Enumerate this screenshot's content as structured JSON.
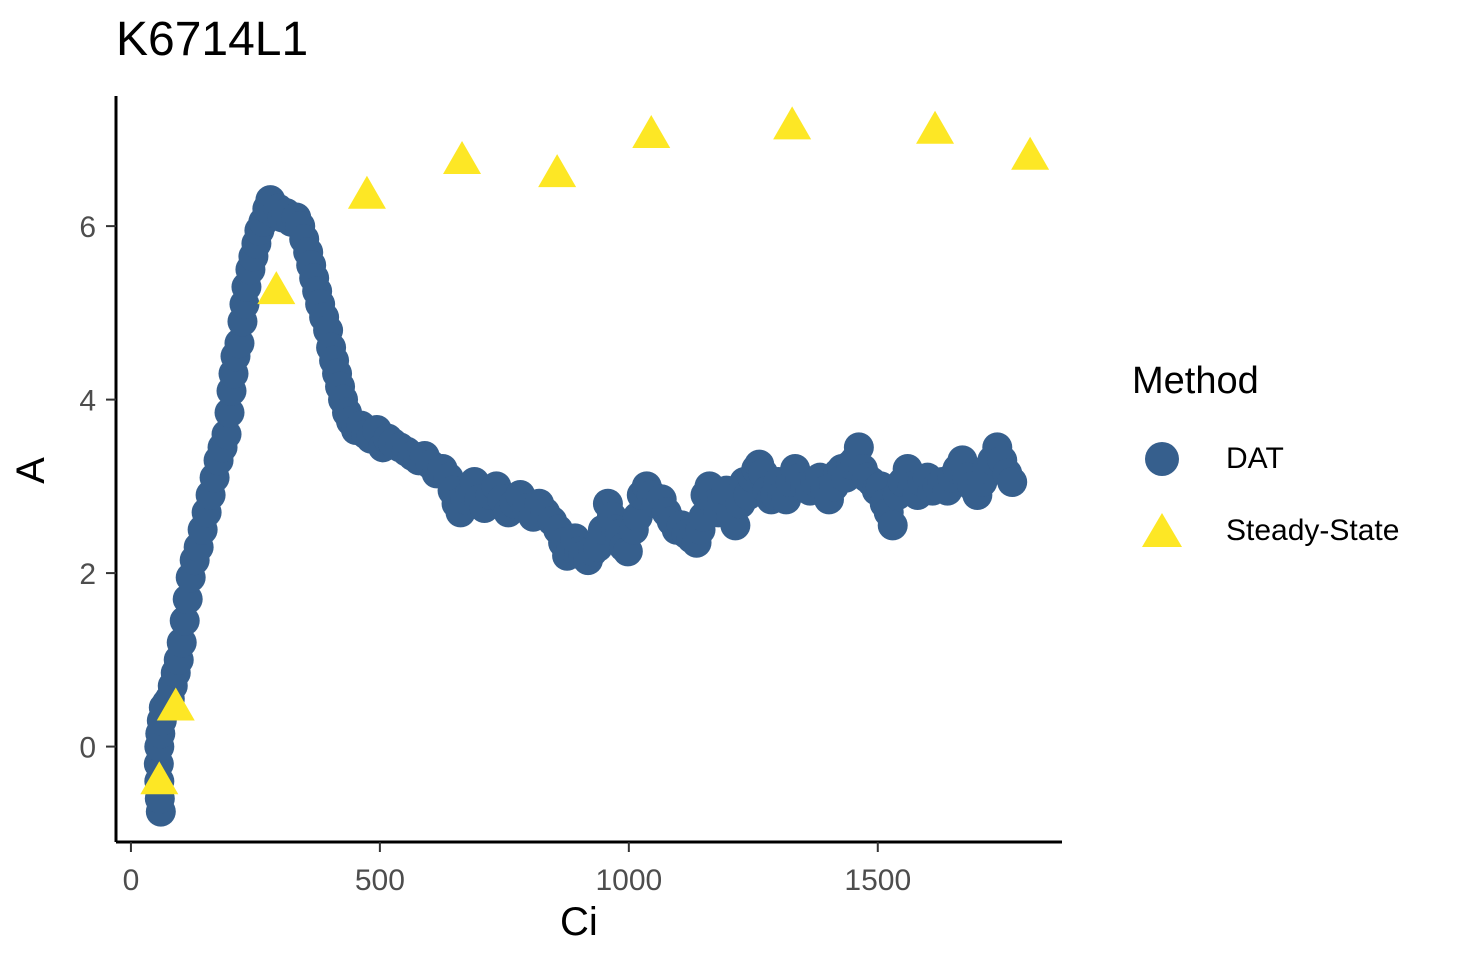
{
  "chart_data": {
    "type": "scatter",
    "title": "K6714L1",
    "xlabel": "Ci",
    "ylabel": "A",
    "xlim": [
      -30,
      1870
    ],
    "ylim": [
      -1.1,
      7.5
    ],
    "x_ticks": [
      0,
      500,
      1000,
      1500
    ],
    "x_tick_labels": [
      "0",
      "500",
      "1000",
      "1500"
    ],
    "y_ticks": [
      0,
      2,
      4,
      6
    ],
    "y_tick_labels": [
      "0",
      "2",
      "4",
      "6"
    ],
    "grid": false,
    "legend_title": "Method",
    "legend_position": "right",
    "series": [
      {
        "name": "DAT",
        "marker": "circle",
        "color": "#365f8d",
        "points": [
          [
            60,
            -0.75
          ],
          [
            58,
            -0.6
          ],
          [
            57,
            -0.4
          ],
          [
            56,
            -0.2
          ],
          [
            57,
            0.0
          ],
          [
            59,
            0.15
          ],
          [
            62,
            0.3
          ],
          [
            66,
            0.45
          ],
          [
            72,
            0.5
          ],
          [
            78,
            0.55
          ],
          [
            84,
            0.7
          ],
          [
            90,
            0.85
          ],
          [
            96,
            1.0
          ],
          [
            102,
            1.2
          ],
          [
            108,
            1.45
          ],
          [
            114,
            1.7
          ],
          [
            120,
            1.95
          ],
          [
            128,
            2.15
          ],
          [
            136,
            2.3
          ],
          [
            144,
            2.5
          ],
          [
            152,
            2.7
          ],
          [
            160,
            2.9
          ],
          [
            168,
            3.1
          ],
          [
            176,
            3.3
          ],
          [
            184,
            3.45
          ],
          [
            192,
            3.6
          ],
          [
            198,
            3.85
          ],
          [
            202,
            4.1
          ],
          [
            206,
            4.3
          ],
          [
            210,
            4.5
          ],
          [
            218,
            4.65
          ],
          [
            224,
            4.9
          ],
          [
            228,
            5.1
          ],
          [
            232,
            5.3
          ],
          [
            240,
            5.5
          ],
          [
            246,
            5.65
          ],
          [
            252,
            5.8
          ],
          [
            258,
            5.95
          ],
          [
            266,
            6.05
          ],
          [
            274,
            6.2
          ],
          [
            280,
            6.3
          ],
          [
            288,
            6.15
          ],
          [
            296,
            6.2
          ],
          [
            304,
            6.1
          ],
          [
            312,
            6.15
          ],
          [
            322,
            6.05
          ],
          [
            332,
            6.1
          ],
          [
            340,
            6.0
          ],
          [
            348,
            5.85
          ],
          [
            356,
            5.7
          ],
          [
            362,
            5.55
          ],
          [
            368,
            5.4
          ],
          [
            374,
            5.25
          ],
          [
            380,
            5.1
          ],
          [
            388,
            4.95
          ],
          [
            396,
            4.8
          ],
          [
            402,
            4.6
          ],
          [
            408,
            4.45
          ],
          [
            414,
            4.3
          ],
          [
            420,
            4.15
          ],
          [
            426,
            4.0
          ],
          [
            434,
            3.85
          ],
          [
            442,
            3.75
          ],
          [
            452,
            3.65
          ],
          [
            462,
            3.7
          ],
          [
            472,
            3.6
          ],
          [
            482,
            3.55
          ],
          [
            494,
            3.65
          ],
          [
            506,
            3.45
          ],
          [
            516,
            3.55
          ],
          [
            526,
            3.5
          ],
          [
            540,
            3.45
          ],
          [
            554,
            3.4
          ],
          [
            566,
            3.35
          ],
          [
            578,
            3.3
          ],
          [
            590,
            3.35
          ],
          [
            602,
            3.25
          ],
          [
            614,
            3.15
          ],
          [
            626,
            3.2
          ],
          [
            638,
            3.1
          ],
          [
            646,
            2.95
          ],
          [
            654,
            2.8
          ],
          [
            662,
            2.7
          ],
          [
            672,
            2.85
          ],
          [
            682,
            2.95
          ],
          [
            690,
            3.05
          ],
          [
            700,
            2.85
          ],
          [
            710,
            2.75
          ],
          [
            722,
            2.9
          ],
          [
            734,
            3.0
          ],
          [
            746,
            2.85
          ],
          [
            758,
            2.7
          ],
          [
            770,
            2.8
          ],
          [
            782,
            2.9
          ],
          [
            796,
            2.75
          ],
          [
            808,
            2.65
          ],
          [
            820,
            2.8
          ],
          [
            832,
            2.7
          ],
          [
            846,
            2.6
          ],
          [
            858,
            2.5
          ],
          [
            868,
            2.35
          ],
          [
            876,
            2.2
          ],
          [
            884,
            2.3
          ],
          [
            892,
            2.4
          ],
          [
            900,
            2.25
          ],
          [
            908,
            2.2
          ],
          [
            918,
            2.15
          ],
          [
            928,
            2.25
          ],
          [
            938,
            2.3
          ],
          [
            948,
            2.5
          ],
          [
            958,
            2.8
          ],
          [
            966,
            2.65
          ],
          [
            974,
            2.5
          ],
          [
            982,
            2.45
          ],
          [
            990,
            2.3
          ],
          [
            998,
            2.25
          ],
          [
            1010,
            2.5
          ],
          [
            1018,
            2.65
          ],
          [
            1026,
            2.9
          ],
          [
            1036,
            3.0
          ],
          [
            1046,
            2.9
          ],
          [
            1056,
            2.8
          ],
          [
            1066,
            2.85
          ],
          [
            1076,
            2.7
          ],
          [
            1086,
            2.6
          ],
          [
            1096,
            2.5
          ],
          [
            1106,
            2.55
          ],
          [
            1116,
            2.45
          ],
          [
            1126,
            2.4
          ],
          [
            1136,
            2.35
          ],
          [
            1144,
            2.5
          ],
          [
            1150,
            2.65
          ],
          [
            1154,
            2.9
          ],
          [
            1162,
            3.0
          ],
          [
            1172,
            2.8
          ],
          [
            1180,
            2.7
          ],
          [
            1188,
            2.85
          ],
          [
            1196,
            2.95
          ],
          [
            1206,
            2.65
          ],
          [
            1214,
            2.55
          ],
          [
            1224,
            2.8
          ],
          [
            1232,
            3.05
          ],
          [
            1240,
            2.9
          ],
          [
            1248,
            3.1
          ],
          [
            1256,
            3.2
          ],
          [
            1262,
            3.25
          ],
          [
            1270,
            3.15
          ],
          [
            1278,
            2.95
          ],
          [
            1286,
            2.85
          ],
          [
            1294,
            2.9
          ],
          [
            1300,
            3.05
          ],
          [
            1308,
            2.9
          ],
          [
            1316,
            2.85
          ],
          [
            1324,
            3.05
          ],
          [
            1334,
            3.2
          ],
          [
            1344,
            3.1
          ],
          [
            1354,
            3.0
          ],
          [
            1364,
            2.95
          ],
          [
            1374,
            3.05
          ],
          [
            1384,
            3.1
          ],
          [
            1394,
            2.95
          ],
          [
            1402,
            2.85
          ],
          [
            1412,
            3.0
          ],
          [
            1420,
            3.15
          ],
          [
            1428,
            3.2
          ],
          [
            1436,
            3.1
          ],
          [
            1446,
            3.25
          ],
          [
            1454,
            3.3
          ],
          [
            1462,
            3.45
          ],
          [
            1470,
            3.2
          ],
          [
            1478,
            3.1
          ],
          [
            1488,
            3.05
          ],
          [
            1498,
            2.95
          ],
          [
            1506,
            3.0
          ],
          [
            1514,
            2.8
          ],
          [
            1522,
            2.7
          ],
          [
            1530,
            2.55
          ],
          [
            1540,
            2.9
          ],
          [
            1550,
            3.05
          ],
          [
            1560,
            3.2
          ],
          [
            1570,
            3.0
          ],
          [
            1580,
            2.9
          ],
          [
            1590,
            3.05
          ],
          [
            1600,
            3.1
          ],
          [
            1610,
            2.95
          ],
          [
            1620,
            3.0
          ],
          [
            1630,
            3.05
          ],
          [
            1640,
            2.95
          ],
          [
            1650,
            3.1
          ],
          [
            1660,
            3.2
          ],
          [
            1670,
            3.3
          ],
          [
            1680,
            3.1
          ],
          [
            1690,
            3.0
          ],
          [
            1700,
            2.9
          ],
          [
            1710,
            3.05
          ],
          [
            1720,
            3.2
          ],
          [
            1730,
            3.3
          ],
          [
            1740,
            3.45
          ],
          [
            1750,
            3.3
          ],
          [
            1760,
            3.15
          ],
          [
            1770,
            3.05
          ]
        ]
      },
      {
        "name": "Steady-State",
        "marker": "triangle",
        "color": "#fde725",
        "points": [
          [
            57,
            -0.4
          ],
          [
            90,
            0.45
          ],
          [
            292,
            5.25
          ],
          [
            474,
            6.35
          ],
          [
            665,
            6.75
          ],
          [
            856,
            6.6
          ],
          [
            1045,
            7.05
          ],
          [
            1328,
            7.15
          ],
          [
            1615,
            7.1
          ],
          [
            1806,
            6.8
          ]
        ]
      }
    ]
  }
}
